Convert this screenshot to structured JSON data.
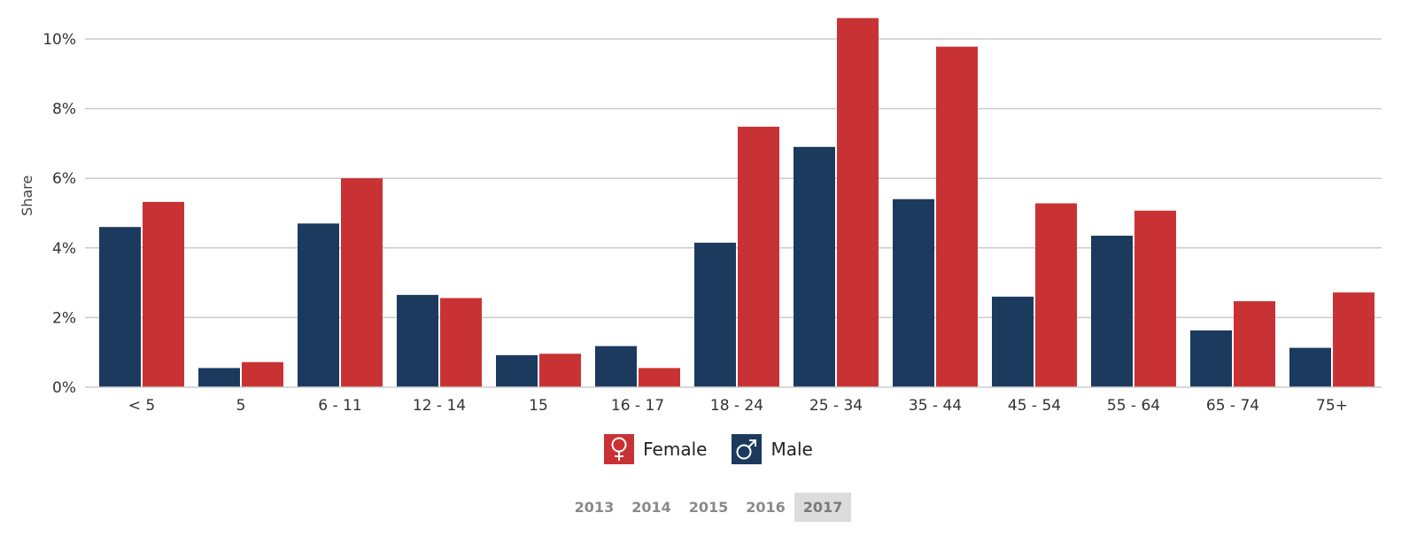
{
  "chart_data": {
    "type": "bar",
    "title": "",
    "xlabel": "",
    "ylabel": "Share",
    "ylim": [
      0,
      10.6
    ],
    "yticks": [
      "0%",
      "2%",
      "4%",
      "6%",
      "8%",
      "10%"
    ],
    "ytick_values": [
      0,
      2,
      4,
      6,
      8,
      10
    ],
    "grid": true,
    "legend_position": "bottom-center",
    "categories": [
      "< 5",
      "5",
      "6 - 11",
      "12 - 14",
      "15",
      "16 - 17",
      "18 - 24",
      "25 - 34",
      "35 - 44",
      "45 - 54",
      "55 - 64",
      "65 - 74",
      "75+"
    ],
    "series": [
      {
        "name": "Male",
        "color": "#1b3a5e",
        "values": [
          4.6,
          0.55,
          4.7,
          2.65,
          0.92,
          1.18,
          4.15,
          6.9,
          5.4,
          2.6,
          4.35,
          1.63,
          1.13
        ]
      },
      {
        "name": "Female",
        "color": "#c93234",
        "values": [
          5.32,
          0.72,
          6.0,
          2.56,
          0.96,
          0.55,
          7.48,
          10.6,
          9.78,
          5.28,
          5.07,
          2.47,
          2.72
        ]
      }
    ]
  },
  "legend": {
    "items": [
      {
        "label": "Female",
        "color": "#c93234",
        "icon": "female-icon"
      },
      {
        "label": "Male",
        "color": "#1b3a5e",
        "icon": "male-icon"
      }
    ]
  },
  "years": {
    "items": [
      "2013",
      "2014",
      "2015",
      "2016",
      "2017"
    ],
    "selected": "2017"
  }
}
